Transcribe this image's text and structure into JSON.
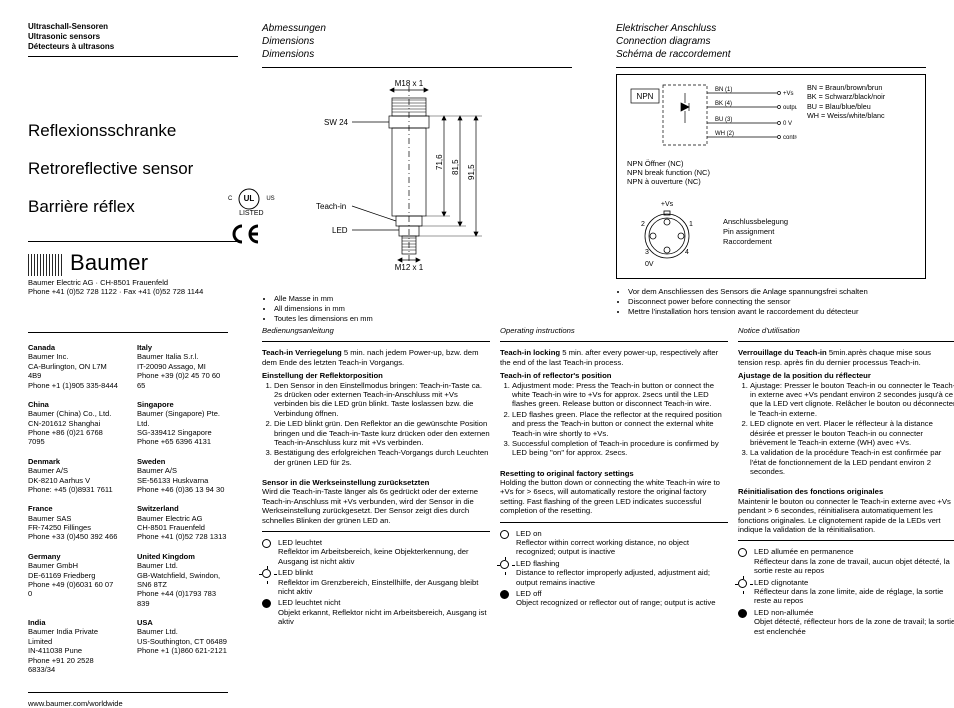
{
  "header": {
    "l1": "Ultraschall-Sensoren",
    "l2": "Ultrasonic sensors",
    "l3": "Détecteurs à ultrasons"
  },
  "titles": {
    "de": "Reflexionsschranke",
    "en": "Retroreflective sensor",
    "fr": "Barrière réflex"
  },
  "brand": {
    "name": "Baumer",
    "addr": "Baumer Electric AG · CH-8501 Frauenfeld",
    "phone": "Phone +41 (0)52 728 1122 · Fax +41 (0)52 728 1144"
  },
  "cert": {
    "listed": "LISTED"
  },
  "offices": [
    {
      "c": "Canada",
      "n": "Baumer Inc.",
      "a": "CA-Burlington, ON L7M 4B9",
      "p": "Phone +1 (1)905 335-8444"
    },
    {
      "c": "Italy",
      "n": "Baumer Italia S.r.l.",
      "a": "IT-20090 Assago, MI",
      "p": "Phone +39 (0)2 45 70 60 65"
    },
    {
      "c": "China",
      "n": "Baumer (China) Co., Ltd.",
      "a": "CN-201612 Shanghai",
      "p": "Phone +86 (0)21 6768 7095"
    },
    {
      "c": "Singapore",
      "n": "Baumer (Singapore) Pte. Ltd.",
      "a": "SG-339412 Singapore",
      "p": "Phone +65 6396 4131"
    },
    {
      "c": "Denmark",
      "n": "Baumer A/S",
      "a": "DK-8210 Aarhus V",
      "p": "Phone: +45 (0)8931 7611"
    },
    {
      "c": "Sweden",
      "n": "Baumer A/S",
      "a": "SE-56133 Huskvarna",
      "p": "Phone +46 (0)36 13 94 30"
    },
    {
      "c": "France",
      "n": "Baumer SAS",
      "a": "FR-74250 Fillinges",
      "p": "Phone +33 (0)450 392 466"
    },
    {
      "c": "Switzerland",
      "n": "Baumer Electric AG",
      "a": "CH-8501 Frauenfeld",
      "p": "Phone +41 (0)52 728 1313"
    },
    {
      "c": "Germany",
      "n": "Baumer GmbH",
      "a": "DE-61169 Friedberg",
      "p": "Phone +49 (0)6031 60 07 0"
    },
    {
      "c": "United Kingdom",
      "n": "Baumer Ltd.",
      "a": "GB-Watchfield, Swindon, SN6 8TZ",
      "p": "Phone +44 (0)1793 783 839"
    },
    {
      "c": "India",
      "n": "Baumer India Private Limited",
      "a": "IN-411038 Pune",
      "p": "Phone +91 20 2528 6833/34"
    },
    {
      "c": "USA",
      "n": "Baumer Ltd.",
      "a": "US-Southington, CT 06489",
      "p": "Phone +1 (1)860 621-2121"
    }
  ],
  "url": "www.baumer.com/worldwide",
  "dimensions": {
    "hdr_de": "Abmessungen",
    "hdr_en": "Dimensions",
    "hdr_fr": "Dimensions",
    "labels": {
      "m18": "M18 x 1",
      "sw24": "SW 24",
      "teachin": "Teach-in",
      "led": "LED",
      "m12": "M12 x 1",
      "d716": "71,6",
      "d815": "81,5",
      "d915": "91,5"
    },
    "notes": [
      "Alle Masse in mm",
      "All dimensions in mm",
      "Toutes les dimensions en mm"
    ]
  },
  "connection": {
    "hdr_de": "Elektrischer Anschluss",
    "hdr_en": "Connection diagrams",
    "hdr_fr": "Schéma de raccordement",
    "npn": "NPN",
    "wires": {
      "bn": "BN (1)",
      "bk": "BK (4)",
      "bu": "BU (3)",
      "wh": "WH (2)",
      "vs": "+Vs",
      "out": "output",
      "ov": "0 V",
      "ctl": "control/Teach-in"
    },
    "legend": [
      "BN = Braun/brown/brun",
      "BK = Schwarz/black/noir",
      "BU = Blau/blue/bleu",
      "WH = Weiss/white/blanc"
    ],
    "npn_lines": [
      "NPN Öffner (NC)",
      "NPN break function (NC)",
      "NPN à ouverture (NC)"
    ],
    "plug": {
      "vs": "+Vs",
      "ov": "0V",
      "p1": "1",
      "p2": "2",
      "p3": "3",
      "p4": "4",
      "t1": "Anschlussbelegung",
      "t2": "Pin assignment",
      "t3": "Raccordement"
    },
    "bullets": [
      "Vor dem Anschliessen des Sensors die Anlage spannungsfrei schalten",
      "Disconnect power before connecting the sensor",
      "Mettre l'installation hors tension avant le raccordement du détecteur"
    ]
  },
  "lang": {
    "de": {
      "title": "Bedienungsanleitung",
      "lock_hdr": "Teach-in Verriegelung",
      "lock_txt": "5 min. nach jedem Power-up, bzw. dem dem Ende des letzten Teach-in Vorgangs.",
      "pos_hdr": "Einstellung der Reflektorposition",
      "pos": [
        "Den Sensor in den Einstellmodus bringen: Teach-in-Taste ca. 2s drücken oder externen Teach-in-Anschluss mit +Vs verbinden bis die LED grün blinkt. Taste loslassen bzw. die Verbindung öffnen.",
        "Die LED blinkt grün. Den Reflektor an die gewünschte Position bringen und die Teach-in-Taste kurz drücken oder den externen Teach-in-Anschluss kurz mit +Vs verbinden.",
        "Bestätigung des erfolgreichen Teach-Vorgangs durch Leuchten der grünen LED für 2s."
      ],
      "reset_hdr": "Sensor in die Werkseinstellung zurücksetzten",
      "reset_txt": "Wird die Teach-in-Taste länger als 6s gedrückt oder der externe Teach-in-Anschluss mit +Vs verbunden, wird der Sensor in die Werkseinstellung zurückgesetzt. Der Sensor zeigt dies durch schnelles Blinken der grünen LED an.",
      "led": [
        {
          "s": "on",
          "t": "LED leuchtet",
          "d": "Reflektor im Arbeitsbereich, keine Objekterkennung, der Ausgang ist nicht aktiv"
        },
        {
          "s": "flash",
          "t": "LED blinkt",
          "d": "Reflektor im Grenzbereich, Einstellhilfe, der Ausgang bleibt nicht aktiv"
        },
        {
          "s": "off",
          "t": "LED leuchtet nicht",
          "d": "Objekt erkannt, Reflektor nicht im Arbeitsbereich, Ausgang ist aktiv"
        }
      ]
    },
    "en": {
      "title": "Operating instructions",
      "lock_hdr": "Teach-in locking",
      "lock_txt": "5 min. after every power-up, respectively after the end of the last Teach-in process.",
      "pos_hdr": "Teach-in of reflector's position",
      "pos": [
        "Adjustment mode: Press the Teach-in button or connect the white Teach-in wire to +Vs for approx. 2secs until the LED flashes green. Release button or disconnect Teach-in wire.",
        "LED flashes green. Place the reflector at the required position and press the Teach-in button or connect the external white Teach-in wire shortly to +Vs.",
        "Successful completion of Teach-in procedure is confirmed by LED being \"on\" for approx. 2secs."
      ],
      "reset_hdr": "Resetting to original factory settings",
      "reset_txt": "Holding the button down or connecting the white Teach-in wire to +Vs for > 6secs, will automatically restore the original factory setting. Fast flashing of the green LED indicates successful completion of the resetting.",
      "led": [
        {
          "s": "on",
          "t": "LED on",
          "d": "Reflector within correct working distance, no object recognized; output is inactive"
        },
        {
          "s": "flash",
          "t": "LED flashing",
          "d": "Distance to reflector improperly adjusted, adjustment aid; output remains inactive"
        },
        {
          "s": "off",
          "t": "LED off",
          "d": "Object recognized or reflector out of range; output is active"
        }
      ]
    },
    "fr": {
      "title": "Notice d'utilisation",
      "lock_hdr": "Verrouillage du Teach-in",
      "lock_txt": "5min.après chaque mise sous tension resp. après fin du dernier processus Teach-in.",
      "pos_hdr": "Ajustage de la position du réflecteur",
      "pos": [
        "Ajustage: Presser le bouton Teach-in ou connecter le Teach-in externe avec +Vs pendant environ 2 secondes jusqu'à ce que la LED vert clignote. Relâcher le bouton ou déconnecter le Teach-in externe.",
        "LED clignote en vert. Placer le réflecteur à la distance désirée et presser le bouton Teach-in ou connecter brièvement le Teach-in externe (WH) avec +Vs.",
        "La validation de la procédure Teach-in est confirmée par l'état de fonctionnement de la LED pendant environ 2 secondes."
      ],
      "reset_hdr": "Réinitialisation des fonctions originales",
      "reset_txt": "Maintenir le bouton ou connecter le Teach-in externe avec +Vs pendant > 6 secondes, réinitialisera automatiquement les fonctions originales. Le clignotement rapide de la LEDs vert indique la validation de la réinitialisation.",
      "led": [
        {
          "s": "on",
          "t": "LED allumée en permanence",
          "d": "Réflecteur dans la zone de travail, aucun objet détecté, la sortie reste au repos"
        },
        {
          "s": "flash",
          "t": "LED clignotante",
          "d": "Réflecteur dans la zone limite, aide de réglage, la sortie reste au repos"
        },
        {
          "s": "off",
          "t": "LED non-allumée",
          "d": "Objet détecté, réflecteur hors de la zone de travail; la sortie est enclenchée"
        }
      ]
    }
  }
}
